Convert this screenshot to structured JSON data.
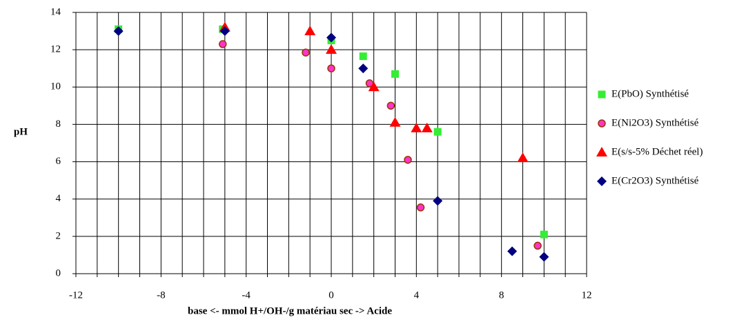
{
  "chart_data": {
    "type": "scatter",
    "x_label": "base <-   mmol H+/OH-/g matériau sec   -> Acide",
    "y_label": "pH",
    "xlim": [
      -12,
      12
    ],
    "ylim": [
      0,
      14
    ],
    "xticks": [
      -12,
      -8,
      -4,
      0,
      4,
      8,
      12
    ],
    "yticks": [
      0,
      2,
      4,
      6,
      8,
      10,
      12,
      14
    ],
    "x_minor_gridlines": [
      -11,
      -10,
      -9,
      -7,
      -6,
      -5,
      -3,
      -2,
      -1,
      1,
      2,
      3,
      5,
      6,
      7,
      9,
      10,
      11
    ],
    "grid": true,
    "legend": "right",
    "series": [
      {
        "name": "E(PbO) Synthétisé",
        "color": "#33ee33",
        "marker": "square",
        "x": [
          -10,
          -5.1,
          0,
          1.5,
          3,
          5,
          10
        ],
        "values": [
          13.1,
          13.1,
          12.5,
          11.65,
          10.7,
          7.6,
          2.1
        ]
      },
      {
        "name": "E(Ni2O3) Synthétisé",
        "color": "#ff33cc",
        "marker": "circle",
        "x": [
          -5.1,
          -1.2,
          0,
          1.8,
          2.8,
          3.6,
          4.2,
          9.7
        ],
        "values": [
          12.3,
          11.85,
          11,
          10.2,
          9,
          6.1,
          3.55,
          1.5
        ]
      },
      {
        "name": "E(s/s-5% Déchet réel)",
        "color": "#ff0000",
        "marker": "triangle",
        "x": [
          -5,
          -1,
          0,
          2,
          3,
          4,
          4.5,
          9
        ],
        "values": [
          13.2,
          13,
          12,
          10,
          8.1,
          7.8,
          7.8,
          6.2
        ]
      },
      {
        "name": "E(Cr2O3) Synthétisé",
        "color": "#000080",
        "marker": "diamond",
        "x": [
          -10,
          -5,
          0,
          1.5,
          5,
          8.5,
          10
        ],
        "values": [
          13,
          13,
          12.65,
          11,
          3.9,
          1.2,
          0.9
        ]
      }
    ]
  }
}
